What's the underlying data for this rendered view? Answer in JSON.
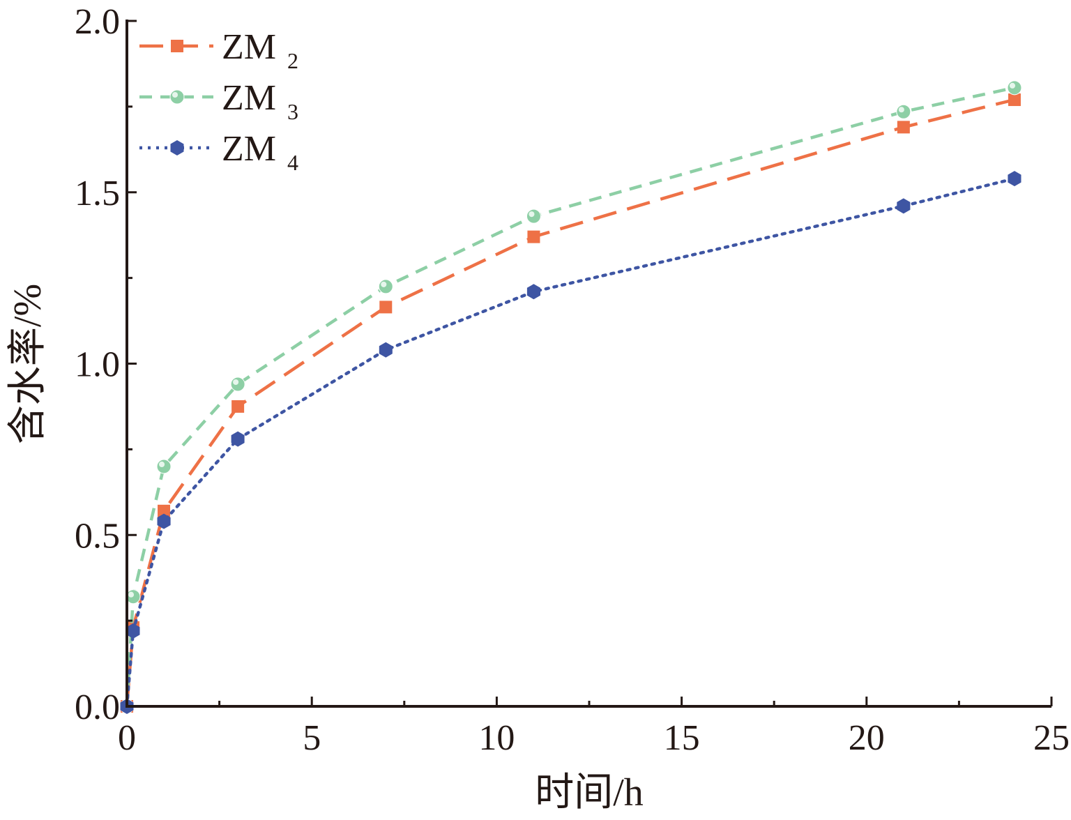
{
  "chart_data": {
    "type": "line",
    "title": "",
    "xlabel": "时间/h",
    "ylabel": "含水率/%",
    "xlim": [
      0,
      25
    ],
    "ylim": [
      0,
      2.0
    ],
    "x_ticks": [
      0,
      5,
      10,
      15,
      20,
      25
    ],
    "x_tick_labels": [
      "0",
      "5",
      "10",
      "15",
      "20",
      "25"
    ],
    "y_ticks": [
      0,
      0.5,
      1.0,
      1.5,
      2.0
    ],
    "y_tick_labels": [
      "0.0",
      "0.5",
      "1.0",
      "1.5",
      "2.0"
    ],
    "grid": false,
    "legend_position": "top-left",
    "series": [
      {
        "name": "ZM2",
        "label_main": "ZM",
        "label_sub": "2",
        "color": "#EE7146",
        "line_style": "long-dash",
        "marker": "square",
        "x": [
          0,
          0.17,
          1,
          3,
          7,
          11,
          21,
          24
        ],
        "y": [
          0,
          0.23,
          0.57,
          0.875,
          1.165,
          1.37,
          1.69,
          1.77
        ]
      },
      {
        "name": "ZM3",
        "label_main": "ZM",
        "label_sub": "3",
        "color": "#8DCFA5",
        "line_style": "dash",
        "marker": "circle",
        "x": [
          0,
          0.17,
          1,
          3,
          7,
          11,
          21,
          24
        ],
        "y": [
          0,
          0.32,
          0.7,
          0.94,
          1.225,
          1.43,
          1.735,
          1.805
        ]
      },
      {
        "name": "ZM4",
        "label_main": "ZM",
        "label_sub": "4",
        "color": "#3E55A3",
        "line_style": "dot",
        "marker": "hexagon",
        "x": [
          0,
          0.17,
          1,
          3,
          7,
          11,
          21,
          24
        ],
        "y": [
          0,
          0.22,
          0.54,
          0.78,
          1.04,
          1.21,
          1.46,
          1.54
        ]
      }
    ]
  }
}
